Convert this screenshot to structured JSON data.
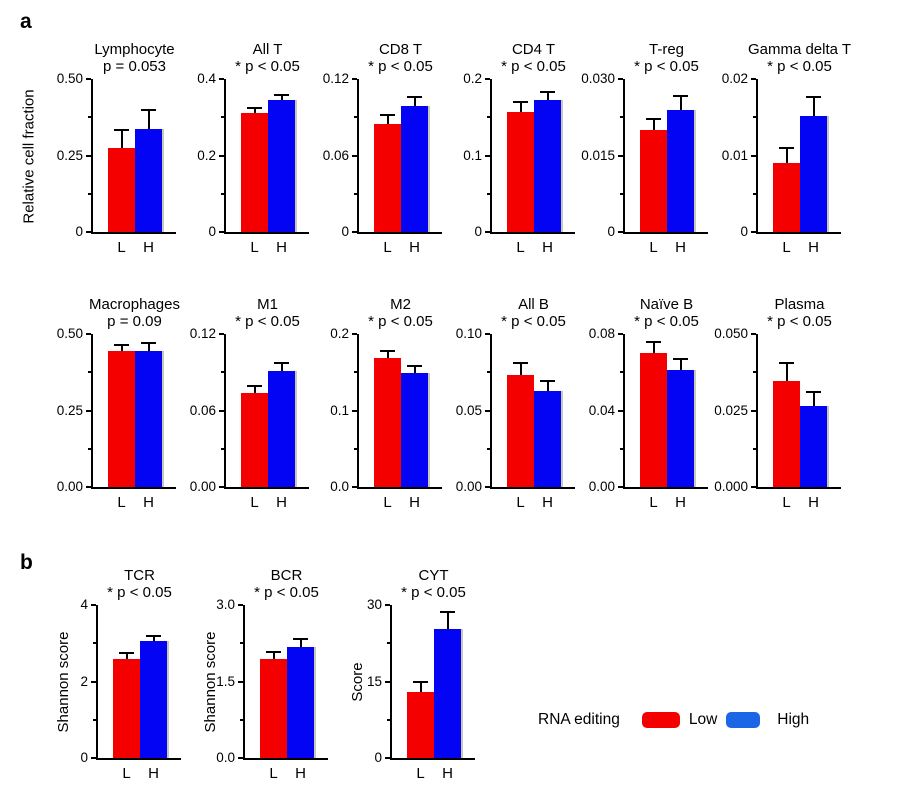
{
  "figure": {
    "panel_a_label": "a",
    "panel_b_label": "b",
    "row1_ylabel": "Relative cell fraction",
    "bar_labels": [
      "L",
      "H"
    ],
    "colors": {
      "low": "#f50000",
      "high": "#0404f5",
      "legend_high": "#1b66e6",
      "bar_edge": "#c9c9b8",
      "axis": "#000000"
    },
    "legend": {
      "title": "RNA editing",
      "low_label": "Low",
      "high_label": "High"
    }
  },
  "chart_data": [
    {
      "id": "lymphocyte",
      "type": "bar",
      "panel": "a",
      "row": 1,
      "title": "Lymphocyte",
      "sig": "p = 0.053",
      "ymax": 0.5,
      "ylim": [
        0,
        0.5
      ],
      "yticks": [
        "0.50",
        "0.25",
        "0"
      ],
      "categories": [
        "L",
        "H"
      ],
      "series": [
        {
          "name": "Low",
          "value": 0.275,
          "err": 0.058
        },
        {
          "name": "High",
          "value": 0.335,
          "err": 0.065
        }
      ]
    },
    {
      "id": "all-t",
      "type": "bar",
      "panel": "a",
      "row": 1,
      "title": "All T",
      "sig": "* p < 0.05",
      "ymax": 0.4,
      "ylim": [
        0,
        0.4
      ],
      "yticks": [
        "0.4",
        "0.2",
        "0"
      ],
      "categories": [
        "L",
        "H"
      ],
      "series": [
        {
          "name": "Low",
          "value": 0.31,
          "err": 0.014
        },
        {
          "name": "High",
          "value": 0.345,
          "err": 0.013
        }
      ]
    },
    {
      "id": "cd8-t",
      "type": "bar",
      "panel": "a",
      "row": 1,
      "title": "CD8 T",
      "sig": "* p < 0.05",
      "ymax": 0.12,
      "ylim": [
        0,
        0.12
      ],
      "yticks": [
        "0.12",
        "0.06",
        "0"
      ],
      "categories": [
        "L",
        "H"
      ],
      "series": [
        {
          "name": "Low",
          "value": 0.085,
          "err": 0.007
        },
        {
          "name": "High",
          "value": 0.099,
          "err": 0.007
        }
      ]
    },
    {
      "id": "cd4-t",
      "type": "bar",
      "panel": "a",
      "row": 1,
      "title": "CD4 T",
      "sig": "* p < 0.05",
      "ymax": 0.2,
      "ylim": [
        0,
        0.2
      ],
      "yticks": [
        "0.2",
        "0.1",
        "0"
      ],
      "categories": [
        "L",
        "H"
      ],
      "series": [
        {
          "name": "Low",
          "value": 0.157,
          "err": 0.013
        },
        {
          "name": "High",
          "value": 0.172,
          "err": 0.011
        }
      ]
    },
    {
      "id": "t-reg",
      "type": "bar",
      "panel": "a",
      "row": 1,
      "title": "T-reg",
      "sig": "* p < 0.05",
      "ymax": 0.03,
      "ylim": [
        0,
        0.03
      ],
      "yticks": [
        "0.030",
        "0.015",
        "0"
      ],
      "categories": [
        "L",
        "H"
      ],
      "series": [
        {
          "name": "Low",
          "value": 0.02,
          "err": 0.0022
        },
        {
          "name": "High",
          "value": 0.024,
          "err": 0.0026
        }
      ]
    },
    {
      "id": "gamma-delta-t",
      "type": "bar",
      "panel": "a",
      "row": 1,
      "title": "Gamma delta T",
      "sig": "* p < 0.05",
      "ymax": 0.02,
      "ylim": [
        0,
        0.02
      ],
      "yticks": [
        "0.02",
        "0.01",
        "0"
      ],
      "categories": [
        "L",
        "H"
      ],
      "series": [
        {
          "name": "Low",
          "value": 0.009,
          "err": 0.002
        },
        {
          "name": "High",
          "value": 0.0152,
          "err": 0.0025
        }
      ]
    },
    {
      "id": "macrophages",
      "type": "bar",
      "panel": "a",
      "row": 2,
      "title": "Macrophages",
      "sig": "p = 0.09",
      "ymax": 0.5,
      "ylim": [
        0,
        0.5
      ],
      "yticks": [
        "0.50",
        "0.25",
        "0.00"
      ],
      "categories": [
        "L",
        "H"
      ],
      "series": [
        {
          "name": "Low",
          "value": 0.445,
          "err": 0.02
        },
        {
          "name": "High",
          "value": 0.445,
          "err": 0.024
        }
      ]
    },
    {
      "id": "m1",
      "type": "bar",
      "panel": "a",
      "row": 2,
      "title": "M1",
      "sig": "* p < 0.05",
      "ymax": 0.12,
      "ylim": [
        0,
        0.12
      ],
      "yticks": [
        "0.12",
        "0.06",
        "0.00"
      ],
      "categories": [
        "L",
        "H"
      ],
      "series": [
        {
          "name": "Low",
          "value": 0.074,
          "err": 0.0055
        },
        {
          "name": "High",
          "value": 0.091,
          "err": 0.006
        }
      ]
    },
    {
      "id": "m2",
      "type": "bar",
      "panel": "a",
      "row": 2,
      "title": "M2",
      "sig": "* p < 0.05",
      "ymax": 0.2,
      "ylim": [
        0,
        0.2
      ],
      "yticks": [
        "0.2",
        "0.1",
        "0.0"
      ],
      "categories": [
        "L",
        "H"
      ],
      "series": [
        {
          "name": "Low",
          "value": 0.169,
          "err": 0.009
        },
        {
          "name": "High",
          "value": 0.149,
          "err": 0.009
        }
      ]
    },
    {
      "id": "all-b",
      "type": "bar",
      "panel": "a",
      "row": 2,
      "title": "All B",
      "sig": "* p < 0.05",
      "ymax": 0.1,
      "ylim": [
        0,
        0.1
      ],
      "yticks": [
        "0.10",
        "0.05",
        "0.00"
      ],
      "categories": [
        "L",
        "H"
      ],
      "series": [
        {
          "name": "Low",
          "value": 0.073,
          "err": 0.008
        },
        {
          "name": "High",
          "value": 0.063,
          "err": 0.006
        }
      ]
    },
    {
      "id": "naive-b",
      "type": "bar",
      "panel": "a",
      "row": 2,
      "title": "Naïve B",
      "sig": "* p < 0.05",
      "ymax": 0.08,
      "ylim": [
        0,
        0.08
      ],
      "yticks": [
        "0.08",
        "0.04",
        "0.00"
      ],
      "categories": [
        "L",
        "H"
      ],
      "series": [
        {
          "name": "Low",
          "value": 0.07,
          "err": 0.006
        },
        {
          "name": "High",
          "value": 0.061,
          "err": 0.006
        }
      ]
    },
    {
      "id": "plasma",
      "type": "bar",
      "panel": "a",
      "row": 2,
      "title": "Plasma",
      "sig": "* p < 0.05",
      "ymax": 0.05,
      "ylim": [
        0,
        0.05
      ],
      "yticks": [
        "0.050",
        "0.025",
        "0.000"
      ],
      "categories": [
        "L",
        "H"
      ],
      "series": [
        {
          "name": "Low",
          "value": 0.0345,
          "err": 0.006
        },
        {
          "name": "High",
          "value": 0.0265,
          "err": 0.0045
        }
      ]
    },
    {
      "id": "tcr",
      "type": "bar",
      "panel": "b",
      "row": 3,
      "title": "TCR",
      "sig": "* p < 0.05",
      "ylabel": "Shannon score",
      "ymax": 4,
      "ylim": [
        0,
        4
      ],
      "yticks": [
        "4",
        "2",
        "0"
      ],
      "categories": [
        "L",
        "H"
      ],
      "series": [
        {
          "name": "Low",
          "value": 2.6,
          "err": 0.15
        },
        {
          "name": "High",
          "value": 3.05,
          "err": 0.15
        }
      ]
    },
    {
      "id": "bcr",
      "type": "bar",
      "panel": "b",
      "row": 3,
      "title": "BCR",
      "sig": "* p < 0.05",
      "ylabel": "Shannon score",
      "ymax": 3,
      "ylim": [
        0,
        3
      ],
      "yticks": [
        "3.0",
        "1.5",
        "0.0"
      ],
      "categories": [
        "L",
        "H"
      ],
      "series": [
        {
          "name": "Low",
          "value": 1.95,
          "err": 0.13
        },
        {
          "name": "High",
          "value": 2.18,
          "err": 0.15
        }
      ]
    },
    {
      "id": "cyt",
      "type": "bar",
      "panel": "b",
      "row": 3,
      "title": "CYT",
      "sig": "* p < 0.05",
      "ylabel": "Score",
      "ymax": 30,
      "ylim": [
        0,
        30
      ],
      "yticks": [
        "30",
        "15",
        "0"
      ],
      "categories": [
        "L",
        "H"
      ],
      "series": [
        {
          "name": "Low",
          "value": 13,
          "err": 2
        },
        {
          "name": "High",
          "value": 25.3,
          "err": 3.3
        }
      ]
    }
  ]
}
